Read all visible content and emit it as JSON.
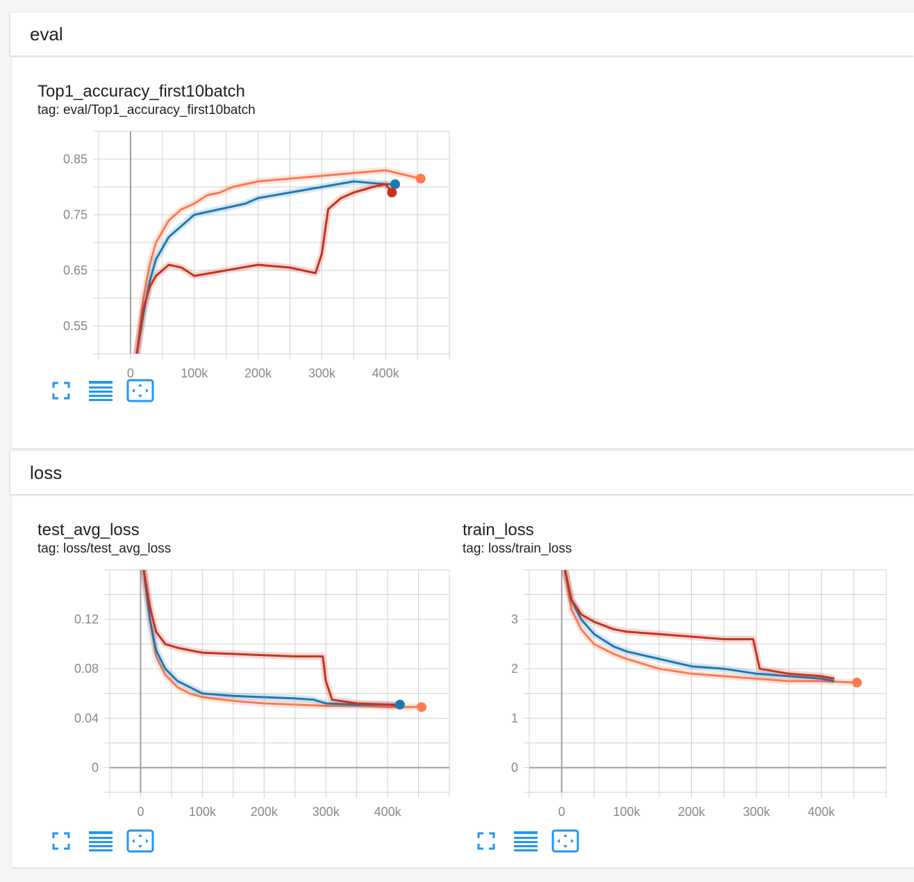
{
  "colors": {
    "accent_blue": "#1f78b4",
    "run_orange": "#fe7a51",
    "run_red": "#c8321a",
    "icon_blue": "#2196f3",
    "grid": "#d0d0d0",
    "zero_axis": "#9e9e9e"
  },
  "sections": {
    "eval": {
      "title": "eval"
    },
    "loss": {
      "title": "loss"
    }
  },
  "cards": {
    "top1": {
      "title": "Top1_accuracy_first10batch",
      "tag": "tag: eval/Top1_accuracy_first10batch"
    },
    "test_loss": {
      "title": "test_avg_loss",
      "tag": "tag: loss/test_avg_loss"
    },
    "train_loss": {
      "title": "train_loss",
      "tag": "tag: loss/train_loss"
    }
  },
  "icons": {
    "fullscreen": "fullscreen-icon",
    "data_table": "data-table-icon",
    "fit_domain": "fit-domain-icon"
  },
  "chart_data": [
    {
      "type": "line",
      "title": "Top1_accuracy_first10batch",
      "xlim": [
        -50000,
        500000
      ],
      "ylim": [
        0.5,
        0.9
      ],
      "x_ticks": [
        "0",
        "100k",
        "200k",
        "300k",
        "400k"
      ],
      "x_tick_values": [
        0,
        100000,
        200000,
        300000,
        400000
      ],
      "y_ticks": [
        "0.55",
        "0.65",
        "0.75",
        "0.85"
      ],
      "y_tick_values": [
        0.55,
        0.65,
        0.75,
        0.85
      ],
      "grid": true,
      "series": [
        {
          "color": "#fe7a51",
          "x": [
            10000,
            20000,
            30000,
            40000,
            60000,
            80000,
            100000,
            120000,
            140000,
            160000,
            180000,
            200000,
            250000,
            300000,
            350000,
            400000,
            455000
          ],
          "values": [
            0.5,
            0.6,
            0.66,
            0.7,
            0.74,
            0.76,
            0.77,
            0.785,
            0.79,
            0.8,
            0.805,
            0.81,
            0.815,
            0.82,
            0.825,
            0.83,
            0.815
          ],
          "end_marker": true
        },
        {
          "color": "#1f78b4",
          "x": [
            10000,
            20000,
            30000,
            40000,
            60000,
            80000,
            100000,
            120000,
            140000,
            160000,
            180000,
            200000,
            250000,
            300000,
            350000,
            400000,
            415000
          ],
          "values": [
            0.5,
            0.57,
            0.63,
            0.67,
            0.71,
            0.73,
            0.75,
            0.755,
            0.76,
            0.765,
            0.77,
            0.78,
            0.79,
            0.8,
            0.81,
            0.805,
            0.805
          ],
          "end_marker": true
        },
        {
          "color": "#c8321a",
          "x": [
            10000,
            20000,
            30000,
            40000,
            50000,
            60000,
            80000,
            100000,
            150000,
            200000,
            250000,
            290000,
            300000,
            310000,
            330000,
            350000,
            380000,
            400000,
            410000
          ],
          "values": [
            0.5,
            0.58,
            0.62,
            0.64,
            0.65,
            0.66,
            0.655,
            0.64,
            0.65,
            0.66,
            0.655,
            0.645,
            0.68,
            0.76,
            0.78,
            0.79,
            0.8,
            0.805,
            0.79
          ],
          "end_marker": true
        }
      ]
    },
    {
      "type": "line",
      "title": "test_avg_loss",
      "xlim": [
        -50000,
        500000
      ],
      "ylim": [
        -0.02,
        0.16
      ],
      "x_ticks": [
        "0",
        "100k",
        "200k",
        "300k",
        "400k"
      ],
      "x_tick_values": [
        0,
        100000,
        200000,
        300000,
        400000
      ],
      "y_ticks": [
        "0",
        "0.04",
        "0.08",
        "0.12"
      ],
      "y_tick_values": [
        0,
        0.04,
        0.08,
        0.12
      ],
      "grid": true,
      "series": [
        {
          "color": "#fe7a51",
          "x": [
            5000,
            15000,
            25000,
            40000,
            60000,
            80000,
            100000,
            150000,
            200000,
            250000,
            300000,
            350000,
            400000,
            455000
          ],
          "values": [
            0.16,
            0.12,
            0.09,
            0.075,
            0.065,
            0.06,
            0.057,
            0.054,
            0.052,
            0.051,
            0.05,
            0.05,
            0.049,
            0.049
          ],
          "end_marker": true
        },
        {
          "color": "#1f78b4",
          "x": [
            5000,
            15000,
            25000,
            40000,
            60000,
            80000,
            100000,
            150000,
            200000,
            250000,
            280000,
            300000,
            350000,
            400000,
            420000
          ],
          "values": [
            0.16,
            0.12,
            0.095,
            0.08,
            0.07,
            0.065,
            0.06,
            0.058,
            0.057,
            0.056,
            0.055,
            0.052,
            0.051,
            0.051,
            0.051
          ],
          "end_marker": true
        },
        {
          "color": "#c8321a",
          "x": [
            5000,
            15000,
            25000,
            40000,
            60000,
            80000,
            100000,
            150000,
            200000,
            250000,
            295000,
            300000,
            310000,
            350000,
            400000,
            420000
          ],
          "values": [
            0.16,
            0.13,
            0.11,
            0.1,
            0.097,
            0.095,
            0.093,
            0.092,
            0.091,
            0.09,
            0.09,
            0.07,
            0.055,
            0.052,
            0.051,
            0.05
          ],
          "end_marker": false
        }
      ]
    },
    {
      "type": "line",
      "title": "train_loss",
      "xlim": [
        -50000,
        500000
      ],
      "ylim": [
        -0.5,
        4.0
      ],
      "x_ticks": [
        "0",
        "100k",
        "200k",
        "300k",
        "400k"
      ],
      "x_tick_values": [
        0,
        100000,
        200000,
        300000,
        400000
      ],
      "y_ticks": [
        "0",
        "1",
        "2",
        "3"
      ],
      "y_tick_values": [
        0,
        1,
        2,
        3
      ],
      "grid": true,
      "series": [
        {
          "color": "#fe7a51",
          "x": [
            5000,
            15000,
            30000,
            50000,
            80000,
            100000,
            150000,
            200000,
            250000,
            300000,
            350000,
            400000,
            455000
          ],
          "values": [
            4.0,
            3.2,
            2.8,
            2.5,
            2.3,
            2.2,
            2.0,
            1.9,
            1.85,
            1.8,
            1.75,
            1.75,
            1.72
          ],
          "end_marker": true
        },
        {
          "color": "#1f78b4",
          "x": [
            5000,
            15000,
            30000,
            50000,
            80000,
            100000,
            150000,
            200000,
            250000,
            300000,
            350000,
            400000,
            420000
          ],
          "values": [
            4.0,
            3.4,
            3.0,
            2.7,
            2.45,
            2.35,
            2.2,
            2.05,
            2.0,
            1.9,
            1.85,
            1.8,
            1.75
          ],
          "end_marker": false
        },
        {
          "color": "#c8321a",
          "x": [
            5000,
            15000,
            30000,
            50000,
            80000,
            100000,
            150000,
            200000,
            250000,
            295000,
            305000,
            350000,
            400000,
            420000
          ],
          "values": [
            4.0,
            3.4,
            3.1,
            2.95,
            2.8,
            2.75,
            2.7,
            2.65,
            2.6,
            2.6,
            2.0,
            1.9,
            1.85,
            1.8
          ],
          "end_marker": false
        }
      ]
    }
  ]
}
